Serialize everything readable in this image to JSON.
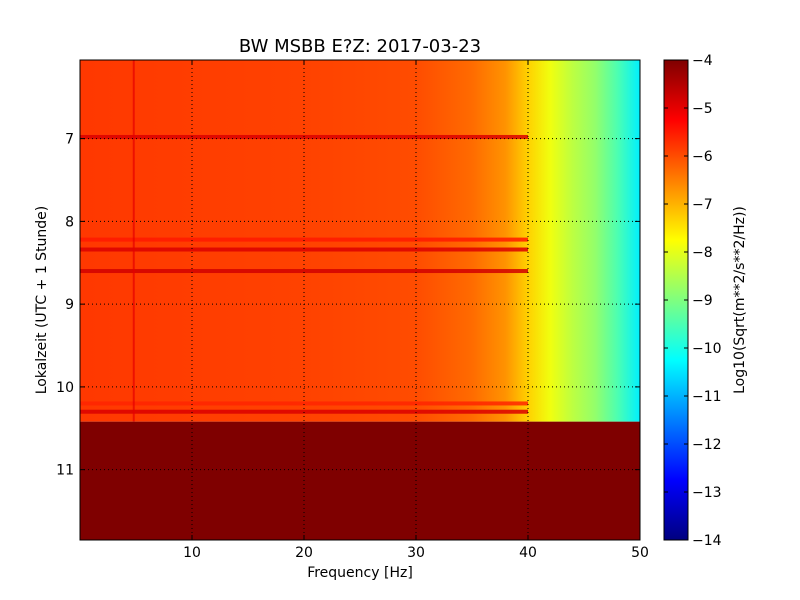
{
  "chart_data": {
    "type": "heatmap",
    "title": "BW MSBB E?Z: 2017-03-23",
    "xlabel": "Frequency [Hz]",
    "ylabel": "Lokalzeit (UTC + 1 Stunde)",
    "xlim": [
      0,
      50
    ],
    "ylim": [
      11.85,
      6.05
    ],
    "xticks": [
      10,
      20,
      30,
      40,
      50
    ],
    "yticks": [
      7,
      8,
      9,
      10,
      11
    ],
    "grid": true,
    "data_end_hour": 10.42,
    "background_level": -6.0,
    "spectrum_profile": [
      {
        "f": 0,
        "level": -5.8
      },
      {
        "f": 20,
        "level": -5.9
      },
      {
        "f": 30,
        "level": -6.0
      },
      {
        "f": 35,
        "level": -6.3
      },
      {
        "f": 38,
        "level": -6.7
      },
      {
        "f": 40,
        "level": -7.3
      },
      {
        "f": 42,
        "level": -7.9
      },
      {
        "f": 44,
        "level": -8.4
      },
      {
        "f": 46,
        "level": -8.8
      },
      {
        "f": 48,
        "level": -9.5
      },
      {
        "f": 50,
        "level": -10.4
      }
    ],
    "noise_bands": [
      {
        "hour": 6.98,
        "level": -4.9
      },
      {
        "hour": 8.22,
        "level": -5.5
      },
      {
        "hour": 8.34,
        "level": -4.9
      },
      {
        "hour": 8.6,
        "level": -4.8
      },
      {
        "hour": 10.2,
        "level": -5.6
      },
      {
        "hour": 10.3,
        "level": -4.9
      }
    ],
    "vertical_line_hz": 4.8,
    "colorbar": {
      "label": "Log10(Sqrt(m**2/s**2/Hz))",
      "min": -14,
      "max": -4,
      "ticks": [
        "-4",
        "-5",
        "-6",
        "-7",
        "-8",
        "-9",
        "-10",
        "-11",
        "-12",
        "-13",
        "-14"
      ],
      "colormap": [
        "#00007f",
        "#0000ff",
        "#007fff",
        "#00ffff",
        "#7fff7f",
        "#ffff00",
        "#ff7f00",
        "#ff0000",
        "#7f0000"
      ]
    }
  }
}
